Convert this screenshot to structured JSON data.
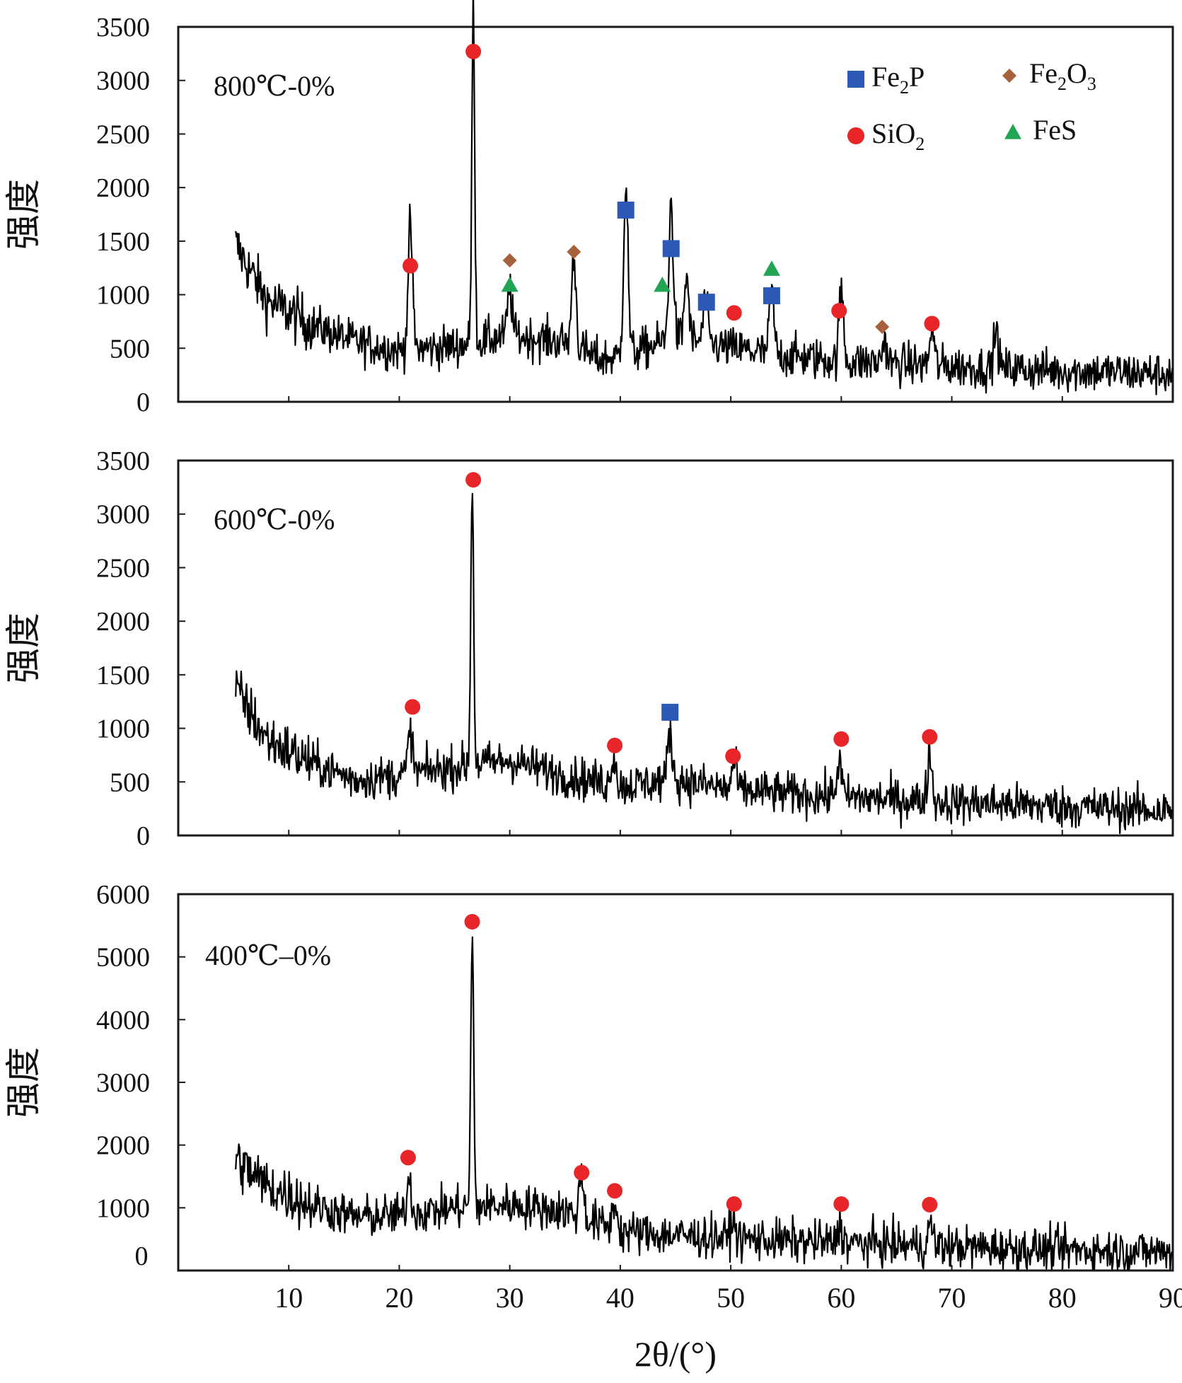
{
  "chart_data": [
    {
      "type": "line",
      "title": "800℃-0%",
      "ylabel": "强度",
      "ylim": [
        0,
        3500
      ],
      "yticks": [
        "0",
        "500",
        "1000",
        "1500",
        "2000",
        "2500",
        "3000",
        "3500"
      ],
      "xlim": [
        0,
        90
      ],
      "series": [
        {
          "name": "800℃-0%",
          "baseline": [
            [
              5,
              1500
            ],
            [
              8,
              950
            ],
            [
              12,
              720
            ],
            [
              16,
              560
            ],
            [
              20,
              480
            ],
            [
              25,
              520
            ],
            [
              30,
              620
            ],
            [
              35,
              560
            ],
            [
              38,
              400
            ],
            [
              40,
              420
            ],
            [
              45,
              600
            ],
            [
              50,
              500
            ],
            [
              55,
              430
            ],
            [
              60,
              380
            ],
            [
              70,
              330
            ],
            [
              80,
              290
            ],
            [
              90,
              260
            ]
          ],
          "peaks": [
            [
              21.0,
              1150
            ],
            [
              26.7,
              3150
            ],
            [
              30.0,
              450
            ],
            [
              35.8,
              850
            ],
            [
              40.5,
              1600
            ],
            [
              44.6,
              1250
            ],
            [
              46.0,
              600
            ],
            [
              47.7,
              400
            ],
            [
              53.7,
              600
            ],
            [
              60.0,
              650
            ],
            [
              63.9,
              220
            ],
            [
              68.2,
              330
            ],
            [
              74.0,
              350
            ]
          ]
        }
      ],
      "markers": [
        {
          "phase": "SiO2",
          "x": 21.0,
          "y": 1270
        },
        {
          "phase": "SiO2",
          "x": 26.7,
          "y": 3270
        },
        {
          "phase": "FeS",
          "x": 30.0,
          "y": 1090
        },
        {
          "phase": "Fe2O3",
          "x": 30.0,
          "y": 1320
        },
        {
          "phase": "Fe2O3",
          "x": 35.8,
          "y": 1400
        },
        {
          "phase": "Fe2P",
          "x": 40.5,
          "y": 1790
        },
        {
          "phase": "FeS",
          "x": 43.8,
          "y": 1090
        },
        {
          "phase": "Fe2P",
          "x": 44.6,
          "y": 1430
        },
        {
          "phase": "Fe2P",
          "x": 47.8,
          "y": 930
        },
        {
          "phase": "SiO2",
          "x": 50.3,
          "y": 830
        },
        {
          "phase": "FeS",
          "x": 53.7,
          "y": 1240
        },
        {
          "phase": "Fe2P",
          "x": 53.7,
          "y": 990
        },
        {
          "phase": "SiO2",
          "x": 59.8,
          "y": 850
        },
        {
          "phase": "Fe2O3",
          "x": 63.7,
          "y": 700
        },
        {
          "phase": "SiO2",
          "x": 68.2,
          "y": 730
        }
      ]
    },
    {
      "type": "line",
      "title": "600℃-0%",
      "ylabel": "强度",
      "ylim": [
        0,
        3500
      ],
      "yticks": [
        "0",
        "500",
        "1000",
        "1500",
        "2000",
        "2500",
        "3000",
        "3500"
      ],
      "xlim": [
        0,
        90
      ],
      "series": [
        {
          "name": "600℃-0%",
          "baseline": [
            [
              5,
              1400
            ],
            [
              8,
              900
            ],
            [
              12,
              680
            ],
            [
              16,
              520
            ],
            [
              20,
              560
            ],
            [
              25,
              640
            ],
            [
              30,
              700
            ],
            [
              35,
              560
            ],
            [
              40,
              460
            ],
            [
              45,
              520
            ],
            [
              50,
              430
            ],
            [
              55,
              390
            ],
            [
              60,
              360
            ],
            [
              70,
              310
            ],
            [
              80,
              270
            ],
            [
              90,
              230
            ]
          ],
          "peaks": [
            [
              21.0,
              400
            ],
            [
              26.6,
              2600
            ],
            [
              39.4,
              300
            ],
            [
              44.5,
              450
            ],
            [
              50.3,
              250
            ],
            [
              59.8,
              350
            ],
            [
              68.0,
              450
            ]
          ]
        }
      ],
      "markers": [
        {
          "phase": "SiO2",
          "x": 21.2,
          "y": 1200
        },
        {
          "phase": "SiO2",
          "x": 26.7,
          "y": 3320
        },
        {
          "phase": "SiO2",
          "x": 39.5,
          "y": 840
        },
        {
          "phase": "Fe2P",
          "x": 44.5,
          "y": 1150
        },
        {
          "phase": "SiO2",
          "x": 50.2,
          "y": 740
        },
        {
          "phase": "SiO2",
          "x": 60.0,
          "y": 900
        },
        {
          "phase": "SiO2",
          "x": 68.0,
          "y": 920
        }
      ]
    },
    {
      "type": "line",
      "title": "400℃–0%",
      "ylabel": "强度",
      "ylim": [
        0,
        6000
      ],
      "yticks": [
        "1000",
        "2000",
        "3000",
        "4000",
        "5000",
        "6000"
      ],
      "xlim": [
        0,
        90
      ],
      "xticks": [
        "10",
        "20",
        "30",
        "40",
        "50",
        "60",
        "70",
        "80",
        "90"
      ],
      "xlabel": "2θ/(°)",
      "series": [
        {
          "name": "400℃–0%",
          "baseline": [
            [
              5,
              1800
            ],
            [
              8,
              1350
            ],
            [
              12,
              1050
            ],
            [
              16,
              850
            ],
            [
              20,
              880
            ],
            [
              25,
              1000
            ],
            [
              30,
              1050
            ],
            [
              35,
              950
            ],
            [
              40,
              620
            ],
            [
              45,
              560
            ],
            [
              50,
              520
            ],
            [
              55,
              470
            ],
            [
              60,
              440
            ],
            [
              70,
              380
            ],
            [
              80,
              330
            ],
            [
              90,
              300
            ]
          ],
          "peaks": [
            [
              20.9,
              550
            ],
            [
              26.6,
              4300
            ],
            [
              36.5,
              700
            ],
            [
              39.5,
              450
            ],
            [
              50.2,
              300
            ],
            [
              59.9,
              300
            ],
            [
              68.1,
              350
            ]
          ]
        }
      ],
      "markers": [
        {
          "phase": "SiO2",
          "x": 20.8,
          "y": 1800
        },
        {
          "phase": "SiO2",
          "x": 26.6,
          "y": 5560
        },
        {
          "phase": "SiO2",
          "x": 36.5,
          "y": 1560
        },
        {
          "phase": "SiO2",
          "x": 39.5,
          "y": 1270
        },
        {
          "phase": "SiO2",
          "x": 50.3,
          "y": 1060
        },
        {
          "phase": "SiO2",
          "x": 60.0,
          "y": 1060
        },
        {
          "phase": "SiO2",
          "x": 68.0,
          "y": 1050
        }
      ]
    }
  ],
  "legend": [
    {
      "key": "Fe2P",
      "base": "Fe",
      "sub": "2",
      "tail": "P",
      "sub2": "",
      "shape": "square",
      "color": "#2b59b5"
    },
    {
      "key": "Fe2O3",
      "base": "Fe",
      "sub": "2",
      "tail": "O",
      "sub2": "3",
      "shape": "diamond",
      "color": "#a8613d"
    },
    {
      "key": "SiO2",
      "base": "SiO",
      "sub": "2",
      "tail": "",
      "sub2": "",
      "shape": "circle",
      "color": "#e8262a"
    },
    {
      "key": "FeS",
      "base": "FeS",
      "sub": "",
      "tail": "",
      "sub2": "",
      "shape": "triangle",
      "color": "#23a455"
    }
  ],
  "stray_zero_label": "0"
}
